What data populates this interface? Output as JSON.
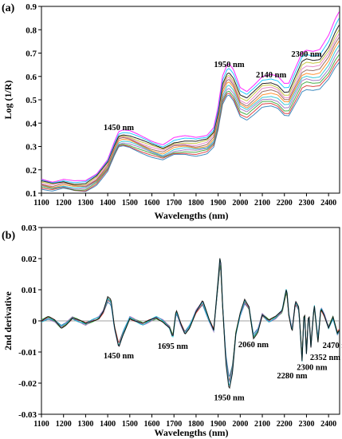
{
  "chart_data": [
    {
      "panel_label": "(a)",
      "type": "line",
      "xlabel": "Wavelengths (nm)",
      "ylabel": "Log (1/R)",
      "xlim": [
        1100,
        2450
      ],
      "ylim": [
        0.1,
        0.9
      ],
      "xticks": [
        "1100",
        "1200",
        "1300",
        "1400",
        "1500",
        "1600",
        "1700",
        "1800",
        "1900",
        "2000",
        "2100",
        "2200",
        "2300",
        "2400"
      ],
      "yticks": [
        "0.1",
        "0.2",
        "0.3",
        "0.4",
        "0.5",
        "0.6",
        "0.7",
        "0.8",
        "0.9"
      ],
      "series_colors": [
        "#1f77b4",
        "#d62728",
        "#2ca02c",
        "#9467bd",
        "#17becf",
        "#ff7f0e",
        "#8c564b",
        "#e377c2",
        "#bcbd22",
        "#000000",
        "#00bfff",
        "#ff00ff"
      ],
      "spectrum_base": {
        "x": [
          1100,
          1150,
          1200,
          1250,
          1300,
          1350,
          1400,
          1430,
          1450,
          1470,
          1500,
          1550,
          1600,
          1650,
          1700,
          1750,
          1800,
          1850,
          1880,
          1900,
          1920,
          1940,
          1950,
          1970,
          2000,
          2030,
          2060,
          2100,
          2140,
          2170,
          2200,
          2220,
          2250,
          2280,
          2300,
          2330,
          2360,
          2400,
          2430,
          2450
        ],
        "y": [
          0.14,
          0.13,
          0.14,
          0.13,
          0.13,
          0.16,
          0.22,
          0.29,
          0.33,
          0.335,
          0.33,
          0.31,
          0.29,
          0.275,
          0.3,
          0.305,
          0.3,
          0.31,
          0.34,
          0.42,
          0.54,
          0.58,
          0.585,
          0.56,
          0.49,
          0.475,
          0.5,
          0.535,
          0.54,
          0.53,
          0.5,
          0.5,
          0.56,
          0.62,
          0.63,
          0.625,
          0.63,
          0.68,
          0.74,
          0.77
        ]
      },
      "offsets": [
        -0.06,
        -0.05,
        -0.04,
        -0.03,
        -0.02,
        -0.01,
        0.0,
        0.01,
        0.02,
        0.03,
        0.045,
        0.06
      ],
      "annotations": [
        {
          "text": "1450 nm",
          "x": 1450,
          "y": 0.37
        },
        {
          "text": "1950 nm",
          "x": 1950,
          "y": 0.64
        },
        {
          "text": "2140 nm",
          "x": 2140,
          "y": 0.595
        },
        {
          "text": "2300 nm",
          "x": 2300,
          "y": 0.685
        }
      ]
    },
    {
      "panel_label": "(b)",
      "type": "line",
      "xlabel": "Wavelengths (nm)",
      "ylabel": "2nd derivative",
      "xlim": [
        1100,
        2450
      ],
      "ylim": [
        -0.03,
        0.03
      ],
      "xticks": [
        "1100",
        "1200",
        "1300",
        "1400",
        "1500",
        "1600",
        "1700",
        "1800",
        "1900",
        "2000",
        "2100",
        "2200",
        "2300",
        "2400"
      ],
      "yticks": [
        "-0.03",
        "-0.02",
        "-0.01",
        "0",
        "0.01",
        "0.02",
        "0.03"
      ],
      "series_colors": [
        "#1f77b4",
        "#d62728",
        "#2ca02c",
        "#9467bd",
        "#17becf",
        "#000000"
      ],
      "spectrum_base": {
        "x": [
          1100,
          1130,
          1160,
          1190,
          1210,
          1240,
          1270,
          1300,
          1330,
          1360,
          1380,
          1400,
          1415,
          1430,
          1450,
          1470,
          1500,
          1530,
          1560,
          1590,
          1620,
          1650,
          1680,
          1695,
          1710,
          1730,
          1750,
          1770,
          1800,
          1830,
          1860,
          1880,
          1900,
          1910,
          1920,
          1935,
          1950,
          1965,
          1980,
          2000,
          2020,
          2040,
          2060,
          2080,
          2100,
          2130,
          2160,
          2190,
          2210,
          2220,
          2235,
          2250,
          2265,
          2280,
          2290,
          2300,
          2310,
          2320,
          2335,
          2352,
          2365,
          2380,
          2400,
          2420,
          2440,
          2450
        ],
        "y": [
          0.0,
          0.001,
          0.0,
          -0.002,
          -0.001,
          0.001,
          0.0,
          -0.001,
          0.0,
          0.001,
          0.003,
          0.007,
          0.006,
          -0.002,
          -0.008,
          -0.004,
          0.001,
          0.0,
          -0.001,
          0.0,
          0.001,
          0.0,
          -0.002,
          -0.005,
          0.003,
          -0.001,
          -0.004,
          -0.002,
          0.003,
          0.006,
          0.0,
          -0.003,
          0.012,
          0.02,
          0.005,
          -0.012,
          -0.02,
          -0.015,
          -0.004,
          0.002,
          0.006,
          0.004,
          -0.005,
          -0.003,
          0.002,
          0.0,
          0.001,
          0.003,
          0.01,
          0.002,
          -0.003,
          0.006,
          0.004,
          -0.012,
          0.004,
          -0.01,
          0.003,
          -0.008,
          0.005,
          -0.006,
          0.004,
          0.002,
          -0.002,
          0.001,
          -0.004,
          -0.003
        ]
      },
      "scales": [
        0.92,
        0.96,
        1.0,
        1.03,
        1.06,
        1.1
      ],
      "annotations": [
        {
          "text": "1450 nm",
          "x": 1450,
          "y": -0.012
        },
        {
          "text": "1695 nm",
          "x": 1695,
          "y": -0.009
        },
        {
          "text": "1950 nm",
          "x": 1950,
          "y": -0.0255
        },
        {
          "text": "2060 nm",
          "x": 2060,
          "y": -0.0085
        },
        {
          "text": "2280 nm",
          "x": 2235,
          "y": -0.0185
        },
        {
          "text": "2300 nm",
          "x": 2325,
          "y": -0.0158
        },
        {
          "text": "2352 nm",
          "x": 2385,
          "y": -0.0125
        },
        {
          "text": "2470 nm",
          "x": 2442,
          "y": -0.0087
        }
      ]
    }
  ]
}
